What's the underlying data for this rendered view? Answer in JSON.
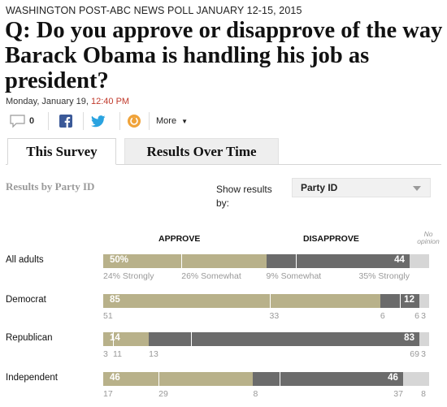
{
  "kicker": "WASHINGTON POST-ABC NEWS POLL JANUARY 12-15, 2015",
  "headline": "Q: Do you approve or disapprove of the way Barack Obama is handling his job as president?",
  "dateline": {
    "date": "Monday, January 19,",
    "time": "12:40 PM"
  },
  "share": {
    "comment_count": "0",
    "more_label": "More"
  },
  "tabs": [
    {
      "label": "This Survey",
      "active": true
    },
    {
      "label": "Results Over Time",
      "active": false
    }
  ],
  "section_title": "Results by Party ID",
  "show_results": {
    "label": "Show results by:",
    "selected": "Party ID"
  },
  "columns": {
    "approve": "APPROVE",
    "disapprove": "DISAPPROVE",
    "no_opinion": "No opinion"
  },
  "colors": {
    "approve": "#b8b18a",
    "disapprove": "#6b6b6b",
    "no_opinion": "#d6d6d6"
  },
  "chart_data": {
    "type": "bar",
    "stacked": true,
    "categories": [
      "All adults",
      "Democrat",
      "Republican",
      "Independent"
    ],
    "series": [
      {
        "name": "APPROVE",
        "values": [
          50,
          85,
          14,
          46
        ],
        "labels": [
          "50%",
          "85",
          "14",
          "46"
        ]
      },
      {
        "name": "DISAPPROVE",
        "values": [
          44,
          12,
          83,
          46
        ],
        "labels": [
          "44",
          "12",
          "83",
          "46"
        ]
      },
      {
        "name": "No opinion",
        "values": [
          6,
          3,
          3,
          8
        ]
      }
    ],
    "breakdowns": [
      {
        "approve_strongly": 24,
        "approve_somewhat": 26,
        "disapprove_somewhat": 9,
        "disapprove_strongly": 35,
        "texts": [
          "24% Strongly",
          "26% Somewhat",
          "9% Somewhat",
          "35% Strongly"
        ]
      },
      {
        "approve_strongly": 51,
        "approve_somewhat": 33,
        "disapprove_somewhat": 6,
        "disapprove_strongly": 6,
        "texts": [
          "51",
          "33",
          "6",
          "6"
        ]
      },
      {
        "approve_strongly": 3,
        "approve_somewhat": 11,
        "disapprove_somewhat": 13,
        "disapprove_strongly": 69,
        "texts": [
          "3",
          "11",
          "13",
          "69"
        ]
      },
      {
        "approve_strongly": 17,
        "approve_somewhat": 29,
        "disapprove_somewhat": 8,
        "disapprove_strongly": 37,
        "texts": [
          "17",
          "29",
          "8",
          "37"
        ]
      }
    ],
    "xlim": [
      0,
      100
    ]
  }
}
